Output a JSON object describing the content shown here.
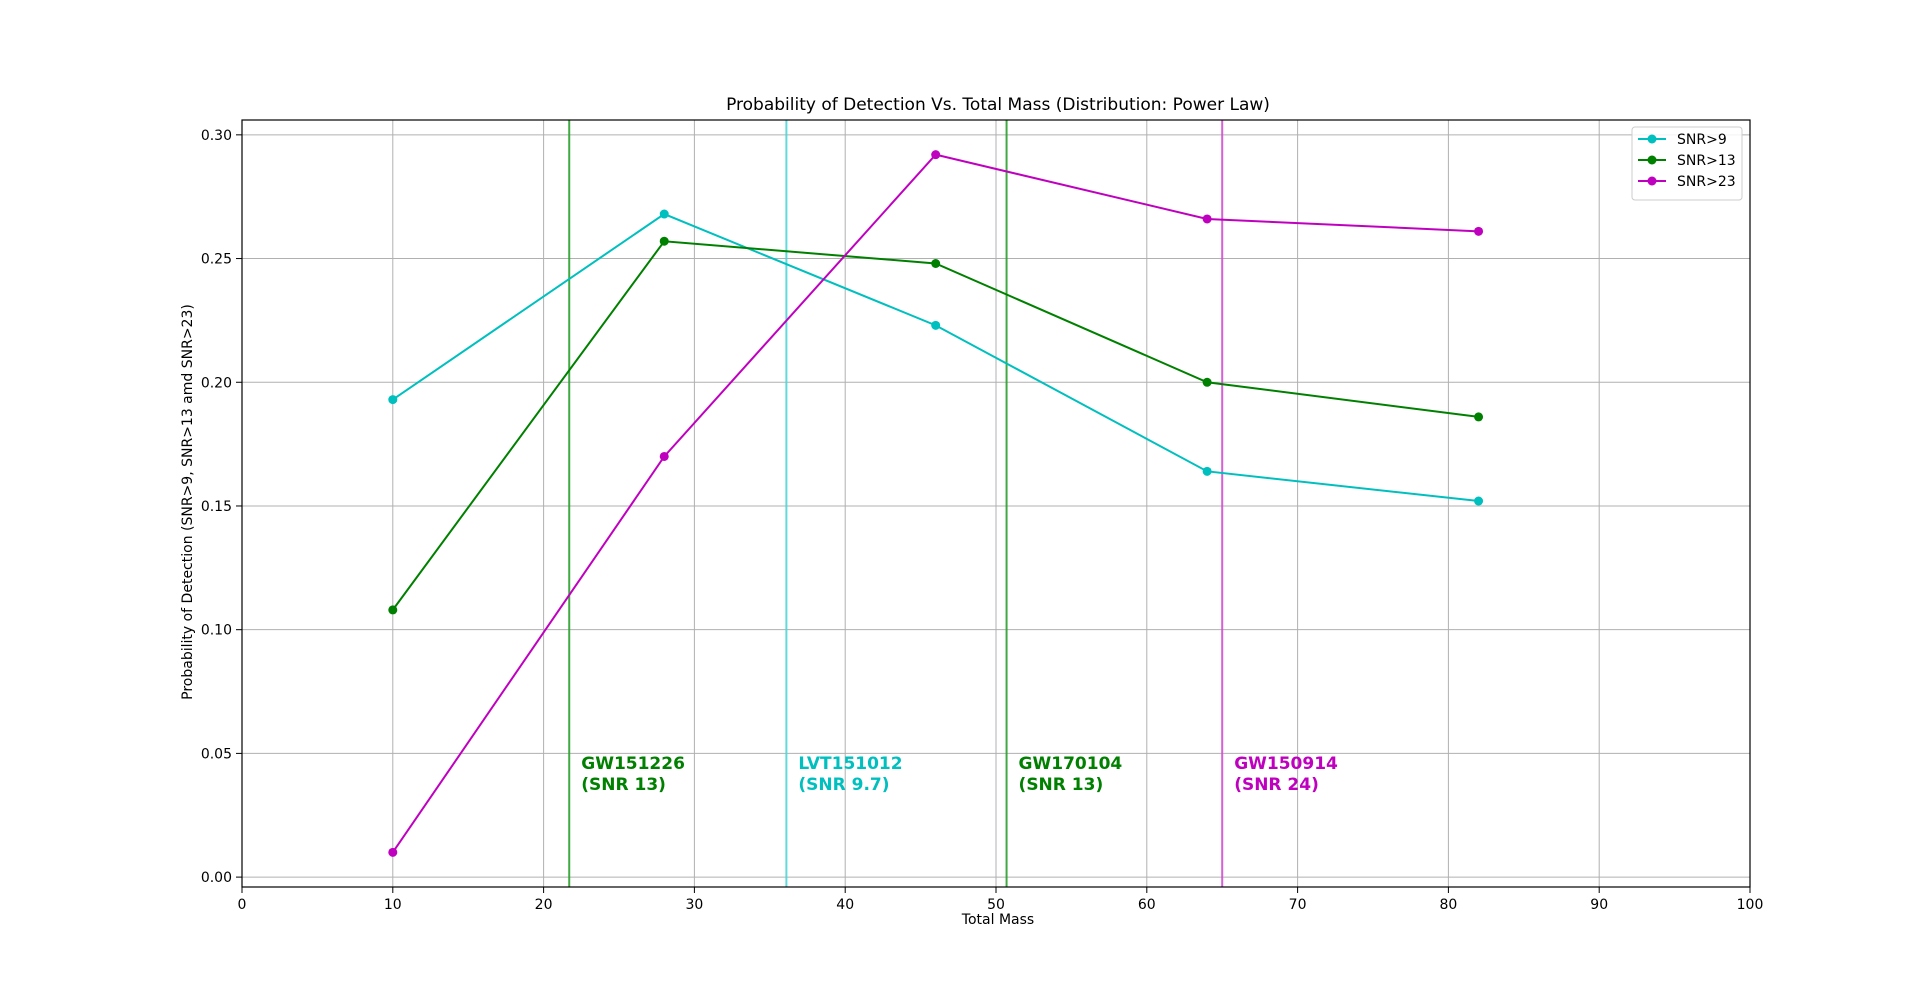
{
  "chart_data": {
    "type": "line",
    "title": "Probability of Detection Vs. Total Mass (Distribution: Power Law)",
    "xlabel": "Total Mass",
    "ylabel": "Probability of Detection (SNR>9, SNR>13 amd SNR>23)",
    "xlim": [
      0,
      100
    ],
    "ylim": [
      -0.004,
      0.306
    ],
    "xticks": [
      0,
      10,
      20,
      30,
      40,
      50,
      60,
      70,
      80,
      90,
      100
    ],
    "yticks": [
      0.0,
      0.05,
      0.1,
      0.15,
      0.2,
      0.25,
      0.3
    ],
    "ytick_labels": [
      "0.00",
      "0.05",
      "0.10",
      "0.15",
      "0.20",
      "0.25",
      "0.30"
    ],
    "grid": true,
    "legend_position": "top-right",
    "x": [
      10,
      28,
      46,
      64,
      82
    ],
    "series": [
      {
        "name": "SNR>9",
        "color": "#00bfbf",
        "values": [
          0.193,
          0.268,
          0.223,
          0.164,
          0.152
        ]
      },
      {
        "name": "SNR>13",
        "color": "#008000",
        "values": [
          0.108,
          0.257,
          0.248,
          0.2,
          0.186
        ]
      },
      {
        "name": "SNR>23",
        "color": "#bf00bf",
        "values": [
          0.01,
          0.17,
          0.292,
          0.266,
          0.261
        ]
      }
    ],
    "vertical_lines": [
      {
        "x": 21.7,
        "color": "#2ca02c",
        "line1": "GW151226",
        "line2": "(SNR 13)",
        "text_color": "#008000"
      },
      {
        "x": 36.1,
        "color": "#4fd6d6",
        "line1": "LVT151012",
        "line2": "(SNR 9.7)",
        "text_color": "#00bfbf"
      },
      {
        "x": 50.7,
        "color": "#2ca02c",
        "line1": "GW170104",
        "line2": "(SNR 13)",
        "text_color": "#008000"
      },
      {
        "x": 65.0,
        "color": "#d24fd2",
        "line1": "GW150914",
        "line2": "(SNR 24)",
        "text_color": "#bf00bf"
      }
    ]
  }
}
